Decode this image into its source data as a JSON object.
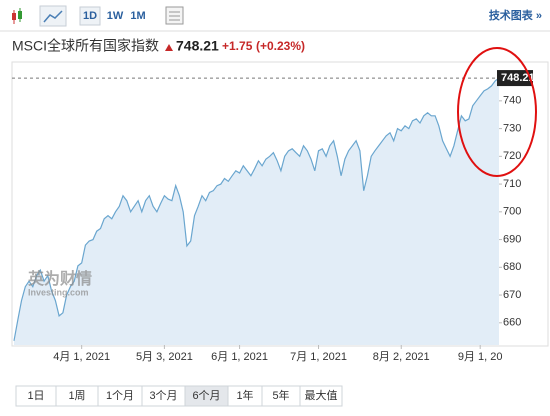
{
  "toolbar": {
    "intervals": [
      "1D",
      "1W",
      "1M"
    ],
    "technical": "技术图表 »"
  },
  "header": {
    "name": "MSCI全球所有国家指数",
    "price": "748.21",
    "change": "+1.75",
    "change_pct": "(+0.23%)"
  },
  "watermark": {
    "cn": "英为财情",
    "en": "Investing.com"
  },
  "ranges": [
    "1日",
    "1周",
    "1个月",
    "3个月",
    "6个月",
    "1年",
    "5年",
    "最大值"
  ],
  "selected_range": "6个月",
  "chart_data": {
    "type": "line",
    "color": "#6aa6cf",
    "fill_color": "#e2edf7",
    "values": [
      653.5,
      661,
      668,
      673,
      675,
      673,
      677,
      679,
      675,
      677,
      671.5,
      668,
      662.5,
      663.6,
      670,
      673,
      675,
      680.5,
      681.6,
      688,
      689.5,
      690,
      693,
      694,
      697.5,
      698.6,
      697.5,
      700,
      702,
      705.8,
      704,
      700,
      702,
      704,
      700,
      704,
      705.8,
      702,
      700,
      703,
      705.8,
      704.6,
      704,
      709.4,
      705.8,
      700,
      687.7,
      689.5,
      698.6,
      702,
      705.8,
      704,
      707,
      707.6,
      709.4,
      710,
      712,
      711,
      713,
      714.8,
      714,
      716.6,
      714.8,
      713,
      715.5,
      718.4,
      716.6,
      719,
      720,
      721.3,
      718.4,
      714.8,
      720,
      722,
      722.7,
      721.3,
      720,
      723.8,
      722,
      719,
      714.8,
      722,
      722.7,
      720,
      723.8,
      725.6,
      720,
      713,
      719,
      722,
      723.8,
      725.6,
      722,
      707.6,
      713,
      720,
      722,
      723.8,
      725.6,
      727.4,
      728.5,
      725.6,
      730,
      729.2,
      731,
      730,
      732.8,
      733.5,
      732,
      734.6,
      735.7,
      734.6,
      734.6,
      731,
      725.6,
      722.7,
      720,
      723.8,
      729.2,
      734.6,
      732.8,
      733.5,
      738.2,
      740,
      741.8,
      743.6,
      744.3,
      745.4,
      747.2,
      748.21
    ],
    "xlim": [
      0,
      129
    ],
    "xticks": [
      {
        "value": 18,
        "label": "4月 1, 2021"
      },
      {
        "value": 40,
        "label": "5月 3, 2021"
      },
      {
        "value": 60,
        "label": "6月 1, 2021"
      },
      {
        "value": 81,
        "label": "7月 1, 2021"
      },
      {
        "value": 103,
        "label": "8月 2, 2021"
      },
      {
        "value": 124,
        "label": "9月 1, 20"
      }
    ],
    "ylim": [
      652,
      754
    ],
    "yticks": [
      660,
      670,
      680,
      690,
      700,
      710,
      720,
      730,
      740
    ],
    "grid": false
  }
}
